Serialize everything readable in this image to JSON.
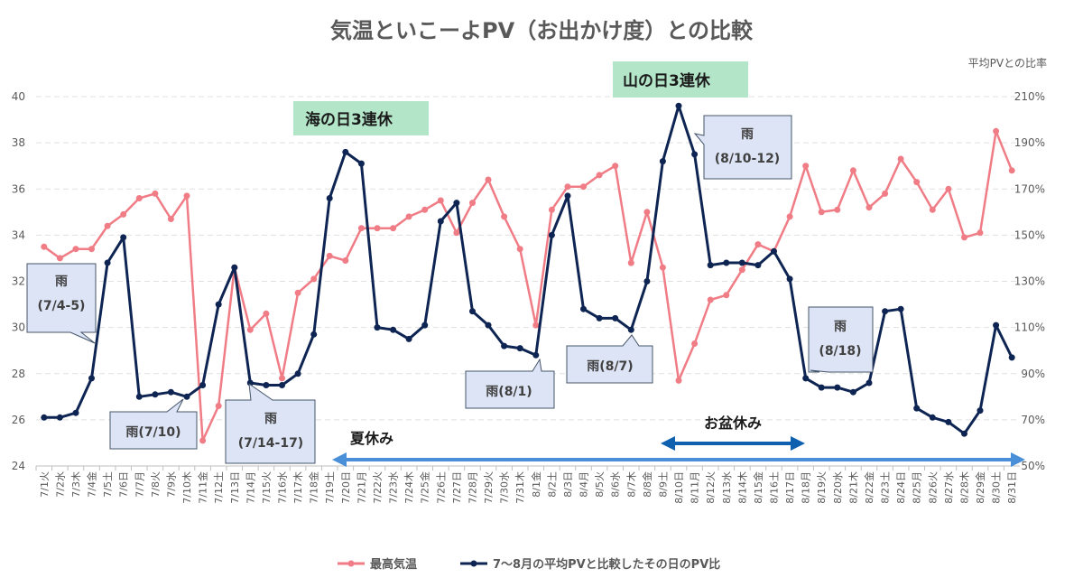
{
  "chart_data": {
    "type": "line",
    "title": "気温といこーよPV（お出かけ度）との比較",
    "right_axis_title": "平均PVとの比率",
    "categories": [
      "7/1火",
      "7/2水",
      "7/3木",
      "7/4金",
      "7/5土",
      "7/6日",
      "7/7月",
      "7/8火",
      "7/9水",
      "7/10木",
      "7/11金",
      "7/12土",
      "7/13日",
      "7/14月",
      "7/15火",
      "7/16水",
      "7/17木",
      "7/18金",
      "7/19土",
      "7/20日",
      "7/21月",
      "7/22火",
      "7/23水",
      "7/24木",
      "7/25金",
      "7/26土",
      "7/27日",
      "7/28月",
      "7/29火",
      "7/30水",
      "7/31木",
      "8/1金",
      "8/2土",
      "8/3日",
      "8/4月",
      "8/5火",
      "8/6水",
      "8/7木",
      "8/8金",
      "8/9土",
      "8/10日",
      "8/11月",
      "8/12火",
      "8/13水",
      "8/14木",
      "8/15金",
      "8/16土",
      "8/17日",
      "8/18月",
      "8/19火",
      "8/20水",
      "8/21木",
      "8/22金",
      "8/23土",
      "8/24日",
      "8/25月",
      "8/26火",
      "8/27水",
      "8/28木",
      "8/29金",
      "8/30土",
      "8/31日"
    ],
    "left_axis": {
      "min": 24,
      "max": 40,
      "step": 2,
      "ticks": [
        "24",
        "26",
        "28",
        "30",
        "32",
        "34",
        "36",
        "38",
        "40"
      ]
    },
    "right_axis": {
      "min": 50,
      "max": 210,
      "step": 20,
      "ticks": [
        "50%",
        "70%",
        "90%",
        "110%",
        "130%",
        "150%",
        "170%",
        "190%",
        "210%"
      ]
    },
    "series": [
      {
        "name": "最高気温",
        "axis": "left",
        "color": "#F07C86",
        "values": [
          33.5,
          33.0,
          33.4,
          33.4,
          34.4,
          34.9,
          35.6,
          35.8,
          34.7,
          35.7,
          25.1,
          26.6,
          32.6,
          29.9,
          30.6,
          27.8,
          31.5,
          32.1,
          33.1,
          32.9,
          34.3,
          34.3,
          34.3,
          34.8,
          35.1,
          35.5,
          34.1,
          35.4,
          36.4,
          34.8,
          33.4,
          30.1,
          35.1,
          36.1,
          36.1,
          36.6,
          37.0,
          32.8,
          35.0,
          32.6,
          27.7,
          29.3,
          31.2,
          31.4,
          32.5,
          33.6,
          33.3,
          34.8,
          37.0,
          35.0,
          35.1,
          36.8,
          35.2,
          35.8,
          37.3,
          36.3,
          35.1,
          36.0,
          33.9,
          34.1,
          38.5,
          36.8
        ]
      },
      {
        "name": "7〜8月の平均PVと比較したその日のPV比",
        "axis": "right",
        "color": "#0E2452",
        "values": [
          71,
          71,
          73,
          88,
          138,
          149,
          80,
          81,
          82,
          80,
          85,
          120,
          136,
          86,
          85,
          85,
          90,
          107,
          166,
          186,
          181,
          110,
          109,
          105,
          111,
          156,
          164,
          117,
          111,
          102,
          101,
          98,
          150,
          167,
          118,
          114,
          114,
          109,
          130,
          182,
          206,
          185,
          137,
          138,
          138,
          137,
          143,
          131,
          88,
          84,
          84,
          82,
          86,
          117,
          118,
          75,
          71,
          69,
          64,
          74,
          111,
          97
        ]
      }
    ],
    "annotations": {
      "umi": "海の日3連休",
      "yama": "山の日3連休",
      "natsu": "夏休み",
      "obon": "お盆休み",
      "c1_line1": "雨",
      "c1_line2": "(7/4-5)",
      "c2": "雨(7/10)",
      "c3_line1": "雨",
      "c3_line2": "(7/14-17)",
      "c4": "雨(8/1)",
      "c5": "雨(8/7)",
      "c6_line1": "雨",
      "c6_line2": "(8/10-12)",
      "c7_line1": "雨",
      "c7_line2": "(8/18)"
    },
    "legend_position": "bottom"
  }
}
